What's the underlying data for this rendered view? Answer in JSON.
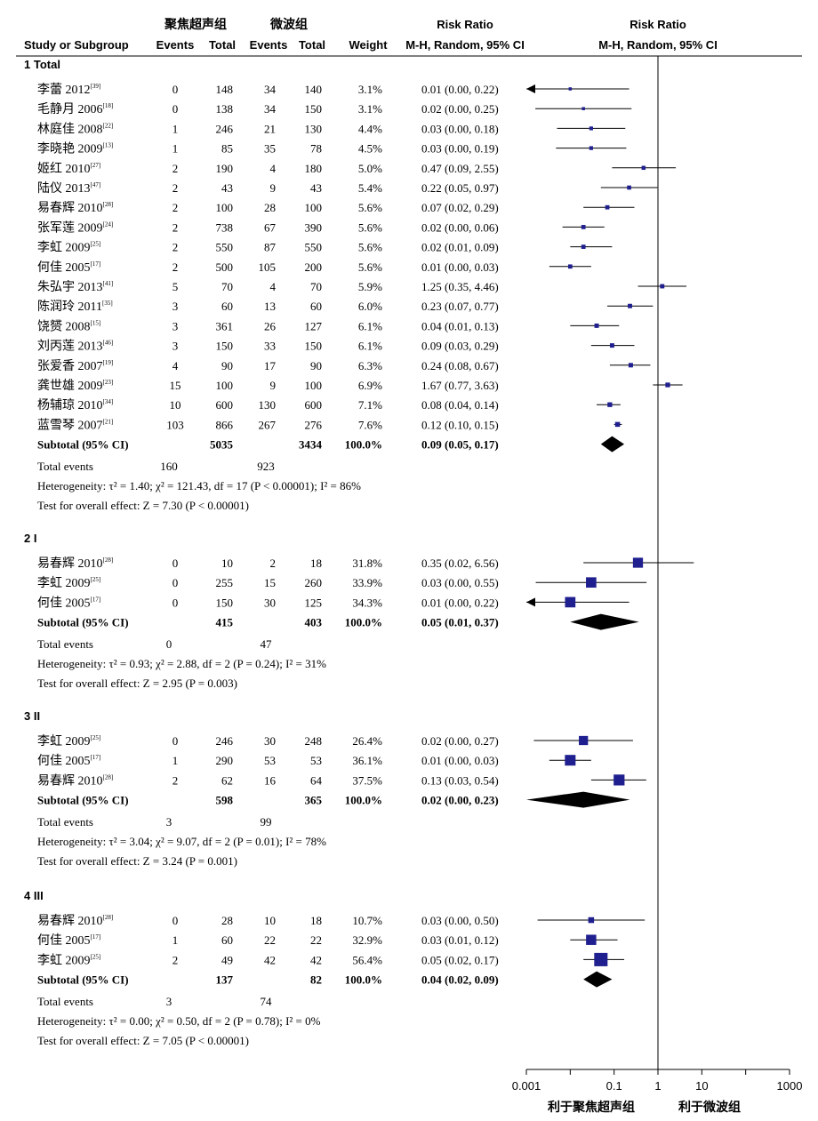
{
  "headers": {
    "group_left": "聚焦超声组",
    "group_right": "微波组",
    "study": "Study or Subgroup",
    "events_left": "Events",
    "total_left": "Total",
    "events_right": "Events",
    "total_right": "Total",
    "weight": "Weight",
    "rr_title_text": "Risk Ratio",
    "rr_method_text": "M-H, Random, 95% CI",
    "rr_title_plot": "Risk Ratio",
    "rr_method_plot": "M-H, Random, 95% CI"
  },
  "footer": {
    "favours_left": "利于聚焦超声组",
    "favours_right": "利于微波组"
  },
  "chart_data": {
    "type": "forest",
    "x_scale": "log",
    "xlim": [
      0.001,
      1000
    ],
    "x_ticks": [
      0.001,
      0.1,
      1,
      10,
      1000
    ],
    "x_tick_labels": [
      "0.001",
      "0.1",
      "1",
      "10",
      "1000"
    ],
    "reference_line": 1,
    "colors": {
      "marker": "#1f1f8f",
      "ink": "#000000"
    },
    "groups": [
      {
        "title": "1 Total",
        "studies": [
          {
            "name": "李蕾 2012",
            "ref": "[39]",
            "e1": "0",
            "n1": "148",
            "e2": "34",
            "n2": "140",
            "weight": "3.1%",
            "ci_text": "0.01 (0.00, 0.22)",
            "rr": 0.01,
            "lo": 0.0,
            "hi": 0.22,
            "w": 3.1
          },
          {
            "name": "毛静月 2006",
            "ref": "[18]",
            "e1": "0",
            "n1": "138",
            "e2": "34",
            "n2": "150",
            "weight": "3.1%",
            "ci_text": "0.02 (0.00, 0.25)",
            "rr": 0.02,
            "lo": 0.0,
            "hi": 0.25,
            "w": 3.1
          },
          {
            "name": "林庭佳 2008",
            "ref": "[22]",
            "e1": "1",
            "n1": "246",
            "e2": "21",
            "n2": "130",
            "weight": "4.4%",
            "ci_text": "0.03 (0.00, 0.18)",
            "rr": 0.03,
            "lo": 0.0,
            "hi": 0.18,
            "w": 4.4
          },
          {
            "name": "李晓艳 2009",
            "ref": "[13]",
            "e1": "1",
            "n1": "85",
            "e2": "35",
            "n2": "78",
            "weight": "4.5%",
            "ci_text": "0.03 (0.00, 0.19)",
            "rr": 0.03,
            "lo": 0.0,
            "hi": 0.19,
            "w": 4.5
          },
          {
            "name": "姬红 2010",
            "ref": "[27]",
            "e1": "2",
            "n1": "190",
            "e2": "4",
            "n2": "180",
            "weight": "5.0%",
            "ci_text": "0.47 (0.09, 2.55)",
            "rr": 0.47,
            "lo": 0.09,
            "hi": 2.55,
            "w": 5.0
          },
          {
            "name": "陆仪 2013",
            "ref": "[47]",
            "e1": "2",
            "n1": "43",
            "e2": "9",
            "n2": "43",
            "weight": "5.4%",
            "ci_text": "0.22 (0.05, 0.97)",
            "rr": 0.22,
            "lo": 0.05,
            "hi": 0.97,
            "w": 5.4
          },
          {
            "name": "易春辉 2010",
            "ref": "[28]",
            "e1": "2",
            "n1": "100",
            "e2": "28",
            "n2": "100",
            "weight": "5.6%",
            "ci_text": "0.07 (0.02, 0.29)",
            "rr": 0.07,
            "lo": 0.02,
            "hi": 0.29,
            "w": 5.6
          },
          {
            "name": "张军莲 2009",
            "ref": "[24]",
            "e1": "2",
            "n1": "738",
            "e2": "67",
            "n2": "390",
            "weight": "5.6%",
            "ci_text": "0.02 (0.00, 0.06)",
            "rr": 0.02,
            "lo": 0.0,
            "hi": 0.06,
            "w": 5.6
          },
          {
            "name": "李虹 2009",
            "ref": "[25]",
            "e1": "2",
            "n1": "550",
            "e2": "87",
            "n2": "550",
            "weight": "5.6%",
            "ci_text": "0.02 (0.01, 0.09)",
            "rr": 0.02,
            "lo": 0.01,
            "hi": 0.09,
            "w": 5.6
          },
          {
            "name": "何佳 2005",
            "ref": "[17]",
            "e1": "2",
            "n1": "500",
            "e2": "105",
            "n2": "200",
            "weight": "5.6%",
            "ci_text": "0.01 (0.00, 0.03)",
            "rr": 0.01,
            "lo": 0.0,
            "hi": 0.03,
            "w": 5.6
          },
          {
            "name": "朱弘宇 2013",
            "ref": "[41]",
            "e1": "5",
            "n1": "70",
            "e2": "4",
            "n2": "70",
            "weight": "5.9%",
            "ci_text": "1.25 (0.35, 4.46)",
            "rr": 1.25,
            "lo": 0.35,
            "hi": 4.46,
            "w": 5.9
          },
          {
            "name": "陈润玲 2011",
            "ref": "[35]",
            "e1": "3",
            "n1": "60",
            "e2": "13",
            "n2": "60",
            "weight": "6.0%",
            "ci_text": "0.23 (0.07, 0.77)",
            "rr": 0.23,
            "lo": 0.07,
            "hi": 0.77,
            "w": 6.0
          },
          {
            "name": "饶赟 2008",
            "ref": "[15]",
            "e1": "3",
            "n1": "361",
            "e2": "26",
            "n2": "127",
            "weight": "6.1%",
            "ci_text": "0.04 (0.01, 0.13)",
            "rr": 0.04,
            "lo": 0.01,
            "hi": 0.13,
            "w": 6.1
          },
          {
            "name": "刘丙莲 2013",
            "ref": "[46]",
            "e1": "3",
            "n1": "150",
            "e2": "33",
            "n2": "150",
            "weight": "6.1%",
            "ci_text": "0.09 (0.03, 0.29)",
            "rr": 0.09,
            "lo": 0.03,
            "hi": 0.29,
            "w": 6.1
          },
          {
            "name": "张爱香 2007",
            "ref": "[19]",
            "e1": "4",
            "n1": "90",
            "e2": "17",
            "n2": "90",
            "weight": "6.3%",
            "ci_text": "0.24 (0.08, 0.67)",
            "rr": 0.24,
            "lo": 0.08,
            "hi": 0.67,
            "w": 6.3
          },
          {
            "name": "龚世雄 2009",
            "ref": "[23]",
            "e1": "15",
            "n1": "100",
            "e2": "9",
            "n2": "100",
            "weight": "6.9%",
            "ci_text": "1.67 (0.77, 3.63)",
            "rr": 1.67,
            "lo": 0.77,
            "hi": 3.63,
            "w": 6.9
          },
          {
            "name": "杨辅琼 2010",
            "ref": "[34]",
            "e1": "10",
            "n1": "600",
            "e2": "130",
            "n2": "600",
            "weight": "7.1%",
            "ci_text": "0.08 (0.04, 0.14)",
            "rr": 0.08,
            "lo": 0.04,
            "hi": 0.14,
            "w": 7.1
          },
          {
            "name": "蓝雪琴 2007",
            "ref": "[21]",
            "e1": "103",
            "n1": "866",
            "e2": "267",
            "n2": "276",
            "weight": "7.6%",
            "ci_text": "0.12 (0.10, 0.15)",
            "rr": 0.12,
            "lo": 0.1,
            "hi": 0.15,
            "w": 7.6
          }
        ],
        "subtotal": {
          "label": "Subtotal (95% CI)",
          "n1": "5035",
          "n2": "3434",
          "weight": "100.0%",
          "ci_text": "0.09 (0.05, 0.17)",
          "rr": 0.09,
          "lo": 0.05,
          "hi": 0.17
        },
        "total_events": {
          "label": "Total events",
          "e1": "160",
          "e2": "923"
        },
        "heterogeneity": "Heterogeneity: τ² = 1.40; χ² = 121.43, df = 17 (P < 0.00001); I² = 86%",
        "overall": "Test for overall effect: Z = 7.30 (P < 0.00001)"
      },
      {
        "title": "2 I",
        "studies": [
          {
            "name": "易春辉 2010",
            "ref": "[28]",
            "e1": "0",
            "n1": "10",
            "e2": "2",
            "n2": "18",
            "weight": "31.8%",
            "ci_text": "0.35 (0.02, 6.56)",
            "rr": 0.35,
            "lo": 0.02,
            "hi": 6.56,
            "w": 31.8
          },
          {
            "name": "李虹 2009",
            "ref": "[25]",
            "e1": "0",
            "n1": "255",
            "e2": "15",
            "n2": "260",
            "weight": "33.9%",
            "ci_text": "0.03 (0.00, 0.55)",
            "rr": 0.03,
            "lo": 0.0,
            "hi": 0.55,
            "w": 33.9
          },
          {
            "name": "何佳 2005",
            "ref": "[17]",
            "e1": "0",
            "n1": "150",
            "e2": "30",
            "n2": "125",
            "weight": "34.3%",
            "ci_text": "0.01 (0.00, 0.22)",
            "rr": 0.01,
            "lo": 0.0,
            "hi": 0.22,
            "w": 34.3
          }
        ],
        "subtotal": {
          "label": "Subtotal (95% CI)",
          "n1": "415",
          "n2": "403",
          "weight": "100.0%",
          "ci_text": "0.05 (0.01, 0.37)",
          "rr": 0.05,
          "lo": 0.01,
          "hi": 0.37
        },
        "total_events": {
          "label": "Total events",
          "e1": "0",
          "e2": "47"
        },
        "heterogeneity": "Heterogeneity: τ² = 0.93; χ² = 2.88, df = 2 (P = 0.24); I² = 31%",
        "overall": "Test for overall effect: Z = 2.95 (P = 0.003)"
      },
      {
        "title": "3 II",
        "studies": [
          {
            "name": "李虹 2009",
            "ref": "[25]",
            "e1": "0",
            "n1": "246",
            "e2": "30",
            "n2": "248",
            "weight": "26.4%",
            "ci_text": "0.02 (0.00, 0.27)",
            "rr": 0.02,
            "lo": 0.0,
            "hi": 0.27,
            "w": 26.4
          },
          {
            "name": "何佳 2005",
            "ref": "[17]",
            "e1": "1",
            "n1": "290",
            "e2": "53",
            "n2": "53",
            "weight": "36.1%",
            "ci_text": "0.01 (0.00, 0.03)",
            "rr": 0.01,
            "lo": 0.0,
            "hi": 0.03,
            "w": 36.1
          },
          {
            "name": "易春辉 2010",
            "ref": "[28]",
            "e1": "2",
            "n1": "62",
            "e2": "16",
            "n2": "64",
            "weight": "37.5%",
            "ci_text": "0.13 (0.03, 0.54)",
            "rr": 0.13,
            "lo": 0.03,
            "hi": 0.54,
            "w": 37.5
          }
        ],
        "subtotal": {
          "label": "Subtotal (95% CI)",
          "n1": "598",
          "n2": "365",
          "weight": "100.0%",
          "ci_text": "0.02 (0.00, 0.23)",
          "rr": 0.02,
          "lo": 0.0,
          "hi": 0.23
        },
        "total_events": {
          "label": "Total events",
          "e1": "3",
          "e2": "99"
        },
        "heterogeneity": "Heterogeneity: τ² = 3.04; χ² = 9.07, df = 2 (P = 0.01); I² = 78%",
        "overall": "Test for overall effect: Z = 3.24 (P = 0.001)"
      },
      {
        "title": "4 III",
        "studies": [
          {
            "name": "易春辉 2010",
            "ref": "[28]",
            "e1": "0",
            "n1": "28",
            "e2": "10",
            "n2": "18",
            "weight": "10.7%",
            "ci_text": "0.03 (0.00, 0.50)",
            "rr": 0.03,
            "lo": 0.0,
            "hi": 0.5,
            "w": 10.7
          },
          {
            "name": "何佳 2005",
            "ref": "[17]",
            "e1": "1",
            "n1": "60",
            "e2": "22",
            "n2": "22",
            "weight": "32.9%",
            "ci_text": "0.03 (0.01, 0.12)",
            "rr": 0.03,
            "lo": 0.01,
            "hi": 0.12,
            "w": 32.9
          },
          {
            "name": "李虹 2009",
            "ref": "[25]",
            "e1": "2",
            "n1": "49",
            "e2": "42",
            "n2": "42",
            "weight": "56.4%",
            "ci_text": "0.05 (0.02, 0.17)",
            "rr": 0.05,
            "lo": 0.02,
            "hi": 0.17,
            "w": 56.4
          }
        ],
        "subtotal": {
          "label": "Subtotal (95% CI)",
          "n1": "137",
          "n2": "82",
          "weight": "100.0%",
          "ci_text": "0.04 (0.02, 0.09)",
          "rr": 0.04,
          "lo": 0.02,
          "hi": 0.09
        },
        "total_events": {
          "label": "Total events",
          "e1": "3",
          "e2": "74"
        },
        "heterogeneity": "Heterogeneity: τ² = 0.00; χ² = 0.50, df = 2 (P = 0.78); I² = 0%",
        "overall": "Test for overall effect: Z = 7.05 (P < 0.00001)"
      }
    ]
  }
}
